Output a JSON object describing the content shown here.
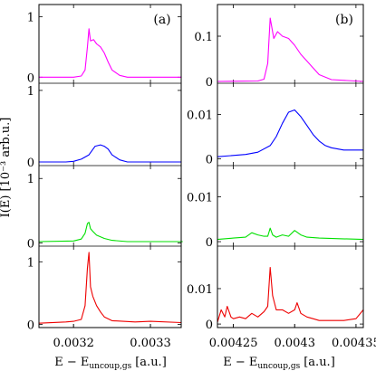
{
  "figure": {
    "ylabel": "I(E) [10⁻³ arb.u.]",
    "xlabel": "E − E",
    "xlabel_sub": "uncoup,gs",
    "xlabel_unit": "[a.u.]"
  },
  "chart_data": [
    {
      "type": "line",
      "panel": "(a)",
      "xlim": [
        0.003155,
        0.00334
      ],
      "xticks": [
        0.0032,
        0.0033
      ],
      "xtick_labels": [
        "0.0032",
        "0.0033"
      ],
      "rows": [
        {
          "color": "#ff00ff",
          "ylim": [
            -0.1,
            1.2
          ],
          "yticks": [
            0,
            1
          ],
          "ytick_labels": [
            "0",
            "1"
          ],
          "x": [
            0.003155,
            0.0032,
            0.00321,
            0.003215,
            0.003218,
            0.00322,
            0.003222,
            0.003226,
            0.00323,
            0.003235,
            0.00324,
            0.003245,
            0.00325,
            0.00326,
            0.00327,
            0.00334
          ],
          "y": [
            0.0,
            0.0,
            0.02,
            0.12,
            0.5,
            0.8,
            0.6,
            0.62,
            0.55,
            0.5,
            0.4,
            0.25,
            0.12,
            0.03,
            0.0,
            0.0
          ]
        },
        {
          "color": "#0000ff",
          "ylim": [
            -0.05,
            1.1
          ],
          "yticks": [
            0,
            1
          ],
          "ytick_labels": [
            "0",
            "1"
          ],
          "x": [
            0.003155,
            0.00319,
            0.0032,
            0.00321,
            0.00322,
            0.003228,
            0.003235,
            0.00324,
            0.003245,
            0.00325,
            0.00326,
            0.00327,
            0.00334
          ],
          "y": [
            0.0,
            0.0,
            0.01,
            0.04,
            0.1,
            0.22,
            0.24,
            0.22,
            0.18,
            0.1,
            0.03,
            0.0,
            0.0
          ]
        },
        {
          "color": "#00e000",
          "ylim": [
            -0.05,
            1.2
          ],
          "yticks": [
            0,
            1
          ],
          "ytick_labels": [
            "0",
            "1"
          ],
          "x": [
            0.003155,
            0.0032,
            0.00321,
            0.003215,
            0.003218,
            0.00322,
            0.003222,
            0.003225,
            0.00323,
            0.00324,
            0.00325,
            0.00327,
            0.003342
          ],
          "y": [
            0.02,
            0.03,
            0.06,
            0.15,
            0.3,
            0.32,
            0.22,
            0.18,
            0.12,
            0.07,
            0.04,
            0.02,
            0.02
          ]
        },
        {
          "color": "#ee0000",
          "ylim": [
            -0.05,
            1.25
          ],
          "yticks": [
            0,
            1
          ],
          "ytick_labels": [
            "0",
            "1"
          ],
          "x": [
            0.003155,
            0.00319,
            0.0032,
            0.00321,
            0.003215,
            0.003218,
            0.00322,
            0.003222,
            0.003225,
            0.00323,
            0.003235,
            0.00324,
            0.00325,
            0.00328,
            0.0033,
            0.00334
          ],
          "y": [
            0.02,
            0.04,
            0.05,
            0.08,
            0.3,
            0.9,
            1.15,
            0.6,
            0.45,
            0.3,
            0.2,
            0.12,
            0.06,
            0.04,
            0.05,
            0.03
          ]
        }
      ]
    },
    {
      "type": "line",
      "panel": "(b)",
      "xlim": [
        0.004237,
        0.004356
      ],
      "xticks": [
        0.00425,
        0.0043,
        0.00435
      ],
      "xtick_labels": [
        "0.00425",
        "0.0043",
        "0.00435"
      ],
      "rows": [
        {
          "color": "#ff00ff",
          "ylim": [
            -0.004,
            0.17
          ],
          "yticks": [
            0,
            0.1
          ],
          "ytick_labels": [
            "0",
            "0.1"
          ],
          "x": [
            0.004237,
            0.00427,
            0.004275,
            0.004278,
            0.00428,
            0.004283,
            0.004286,
            0.00429,
            0.004295,
            0.0043,
            0.004305,
            0.00431,
            0.004315,
            0.00432,
            0.00433,
            0.004356
          ],
          "y": [
            0.0,
            0.001,
            0.005,
            0.04,
            0.14,
            0.095,
            0.11,
            0.1,
            0.095,
            0.08,
            0.06,
            0.045,
            0.03,
            0.015,
            0.004,
            0.0
          ]
        },
        {
          "color": "#0000ff",
          "ylim": [
            -0.0015,
            0.017
          ],
          "yticks": [
            0,
            0.01
          ],
          "ytick_labels": [
            "0",
            "0.01"
          ],
          "x": [
            0.004237,
            0.00426,
            0.00427,
            0.00428,
            0.004285,
            0.00429,
            0.004295,
            0.0043,
            0.004305,
            0.00431,
            0.004315,
            0.00432,
            0.004325,
            0.00433,
            0.00434,
            0.004356
          ],
          "y": [
            0.0005,
            0.001,
            0.0015,
            0.003,
            0.005,
            0.008,
            0.0105,
            0.011,
            0.0095,
            0.0075,
            0.0055,
            0.004,
            0.003,
            0.0025,
            0.002,
            0.002
          ]
        },
        {
          "color": "#00e000",
          "ylim": [
            -0.001,
            0.017
          ],
          "yticks": [
            0,
            0.01
          ],
          "ytick_labels": [
            "0",
            "0.01"
          ],
          "x": [
            0.004237,
            0.00425,
            0.00426,
            0.004265,
            0.00427,
            0.004275,
            0.004278,
            0.00428,
            0.004282,
            0.004285,
            0.00429,
            0.004295,
            0.0043,
            0.004305,
            0.00431,
            0.00432,
            0.004356
          ],
          "y": [
            0.0005,
            0.0008,
            0.001,
            0.002,
            0.0015,
            0.0012,
            0.0012,
            0.003,
            0.0015,
            0.001,
            0.0015,
            0.0012,
            0.0025,
            0.0015,
            0.001,
            0.0008,
            0.0005
          ]
        },
        {
          "color": "#ee0000",
          "ylim": [
            -0.001,
            0.022
          ],
          "yticks": [
            0,
            0.01
          ],
          "ytick_labels": [
            "0",
            "0.01"
          ],
          "x": [
            0.004237,
            0.00424,
            0.004243,
            0.004245,
            0.004248,
            0.00425,
            0.004255,
            0.00426,
            0.004265,
            0.00427,
            0.004275,
            0.004278,
            0.00428,
            0.004282,
            0.004285,
            0.00429,
            0.004295,
            0.0043,
            0.004302,
            0.004305,
            0.00431,
            0.004315,
            0.00432,
            0.00433,
            0.00434,
            0.00435,
            0.004356
          ],
          "y": [
            0.0005,
            0.004,
            0.002,
            0.005,
            0.002,
            0.0015,
            0.002,
            0.0015,
            0.003,
            0.002,
            0.0035,
            0.005,
            0.016,
            0.008,
            0.004,
            0.004,
            0.003,
            0.004,
            0.006,
            0.003,
            0.002,
            0.0015,
            0.001,
            0.001,
            0.001,
            0.0015,
            0.004
          ]
        }
      ]
    }
  ]
}
